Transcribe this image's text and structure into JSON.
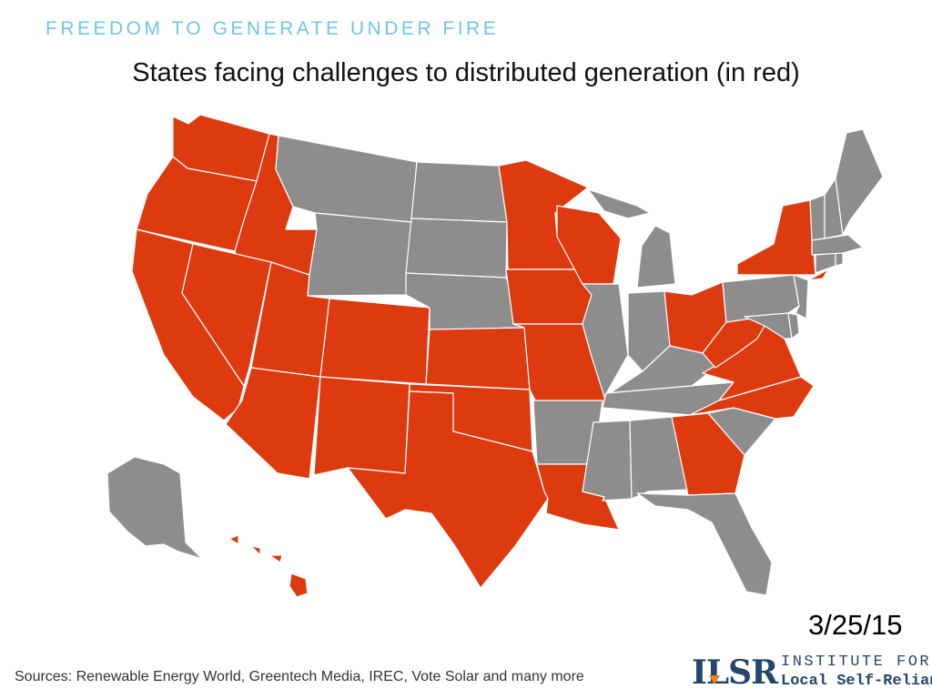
{
  "header": {
    "kicker": "FREEDOM TO GENERATE UNDER FIRE",
    "title": "States facing challenges to distributed generation (in red)"
  },
  "date": "3/25/15",
  "sources": "Sources: Renewable Energy World, Greentech Media, IREC, Vote Solar and many more",
  "logo": {
    "mark": "ILSR",
    "line1": "INSTITUTE FOR",
    "line2": "Local Self-Reliance"
  },
  "colors": {
    "challenged": "#dd3a10",
    "other": "#8d8d8d",
    "kicker": "#6ec6e8",
    "logo": "#24466b",
    "logo_accent": "#e8821e"
  },
  "map": {
    "challenged_states": [
      "WA",
      "OR",
      "CA",
      "ID",
      "NV",
      "UT",
      "AZ",
      "CO",
      "NM",
      "KS",
      "OK",
      "TX",
      "MN",
      "IA",
      "MO",
      "WI",
      "LA",
      "OH",
      "WV",
      "VA",
      "NC",
      "GA",
      "NY",
      "HI"
    ],
    "other_states": [
      "MT",
      "WY",
      "ND",
      "SD",
      "NE",
      "AK",
      "AR",
      "MS",
      "AL",
      "TN",
      "KY",
      "IL",
      "IN",
      "MI",
      "FL",
      "SC",
      "PA",
      "NJ",
      "DE",
      "MD",
      "CT",
      "RI",
      "MA",
      "VT",
      "NH",
      "ME"
    ]
  }
}
